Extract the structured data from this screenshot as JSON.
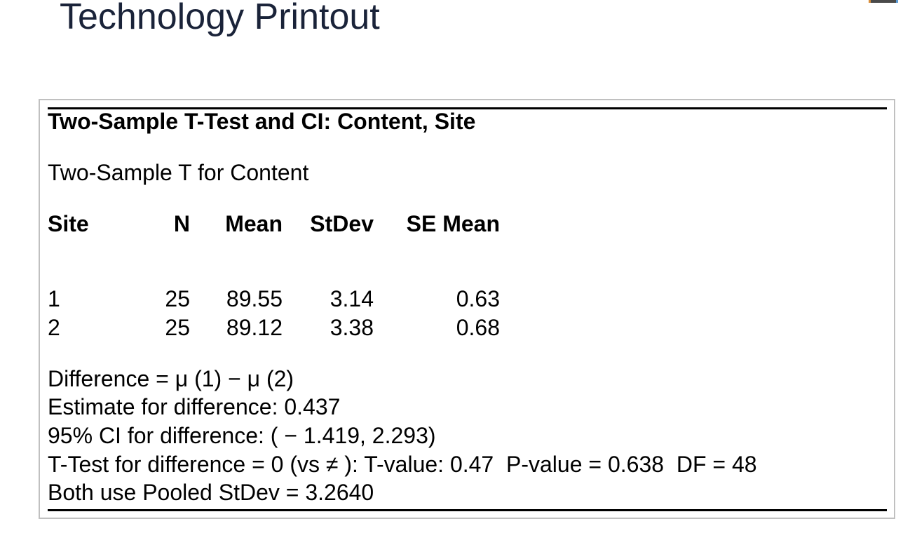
{
  "page": {
    "title": "Technology Printout"
  },
  "printout": {
    "heading": "Two-Sample T-Test and CI: Content, Site",
    "subtitle": "Two-Sample T for Content",
    "table": {
      "columns": [
        "Site",
        "N",
        "Mean",
        "StDev",
        "SE Mean"
      ],
      "rows": [
        [
          "1",
          "25",
          "89.55",
          "3.14",
          "0.63"
        ],
        [
          "2",
          "25",
          "89.12",
          "3.38",
          "0.68"
        ]
      ]
    },
    "lines": [
      "Difference = μ (1) − μ (2)",
      "Estimate for difference: 0.437",
      "95% CI for difference: ( − 1.419, 2.293)",
      "T-Test for difference = 0 (vs ≠ ): T-value: 0.47  P-value = 0.638  DF = 48",
      "Both use Pooled StDev = 3.2640"
    ]
  },
  "colors": {
    "title_text": "#1a2339",
    "panel_border": "#c0c0c0",
    "rule": "#000000",
    "toolbar_fragment_gray": "#4a4a4a",
    "toolbar_fragment_orange": "#d98e3a",
    "toolbar_fragment_blue": "#5b9bd5"
  }
}
